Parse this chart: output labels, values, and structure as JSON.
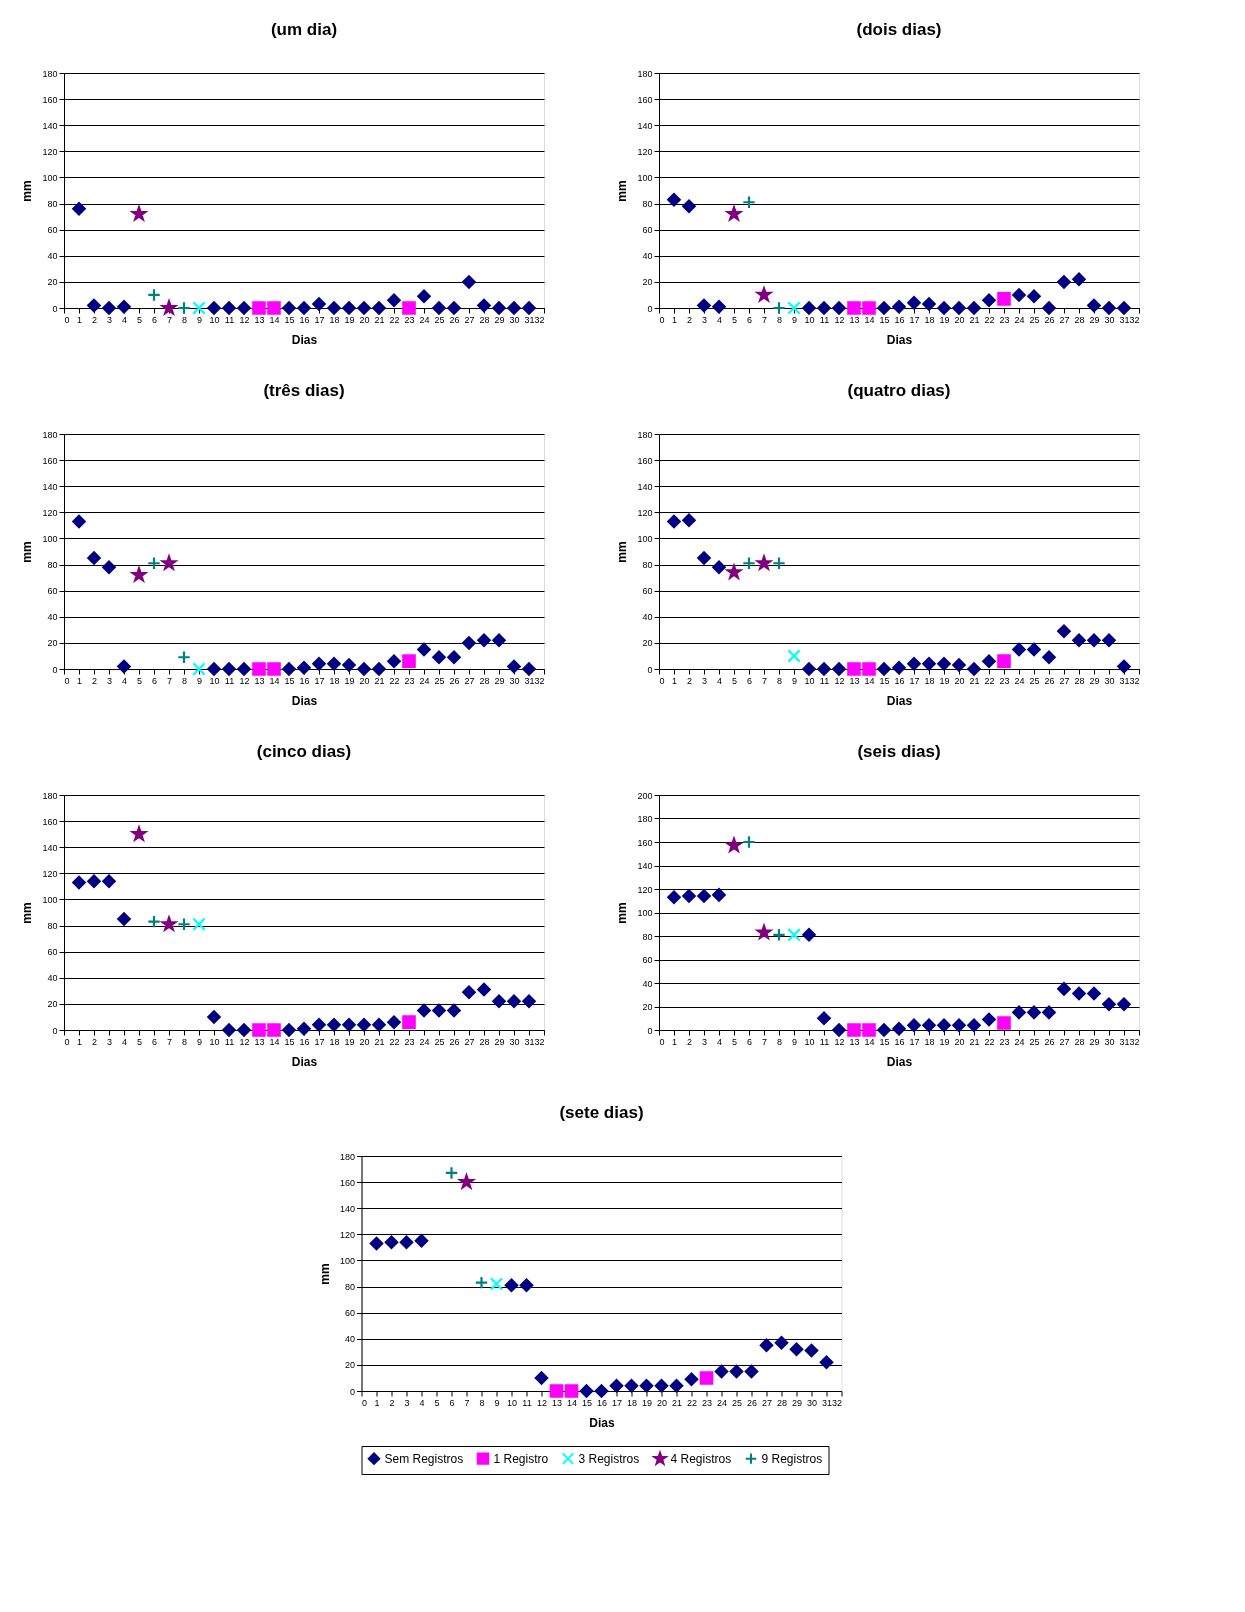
{
  "chart_data": [
    {
      "type": "scatter",
      "title": "(um dia)",
      "xlabel": "Dias",
      "ylabel": "mm",
      "xlim": [
        0,
        32
      ],
      "xticks": [
        0,
        1,
        2,
        3,
        4,
        5,
        6,
        7,
        8,
        9,
        10,
        11,
        12,
        13,
        14,
        15,
        16,
        17,
        18,
        19,
        20,
        21,
        22,
        23,
        24,
        25,
        26,
        27,
        28,
        29,
        30,
        31,
        32
      ],
      "ylim": [
        0,
        180
      ],
      "yticks": [
        0,
        20,
        40,
        60,
        80,
        100,
        120,
        140,
        160,
        180
      ],
      "grid": "y",
      "legend": false,
      "series": [
        {
          "color": "#000080",
          "marker": "diamond",
          "x": [
            1,
            2,
            3,
            4,
            10,
            11,
            12,
            15,
            16,
            17,
            18,
            19,
            20,
            21,
            22,
            24,
            25,
            26,
            27,
            28,
            29,
            30,
            31
          ],
          "values": [
            76,
            2,
            0,
            1,
            0,
            0,
            0,
            0,
            0,
            3,
            0,
            0,
            0,
            0,
            6,
            9,
            0,
            0,
            20,
            2,
            0,
            0,
            0
          ]
        },
        {
          "color": "#ff00ff",
          "marker": "square",
          "x": [
            13,
            14,
            23
          ],
          "values": [
            0,
            0,
            0
          ]
        },
        {
          "color": "#00ffff",
          "marker": "x",
          "x": [
            9
          ],
          "values": [
            0
          ]
        },
        {
          "color": "#800080",
          "marker": "star",
          "x": [
            5,
            7
          ],
          "values": [
            72,
            0
          ]
        },
        {
          "color": "#008080",
          "marker": "cross",
          "x": [
            6,
            8
          ],
          "values": [
            10,
            0
          ]
        }
      ]
    },
    {
      "type": "scatter",
      "title": "(dois dias)",
      "xlabel": "Dias",
      "ylabel": "mm",
      "xlim": [
        0,
        32
      ],
      "xticks": [
        0,
        1,
        2,
        3,
        4,
        5,
        6,
        7,
        8,
        9,
        10,
        11,
        12,
        13,
        14,
        15,
        16,
        17,
        18,
        19,
        20,
        21,
        22,
        23,
        24,
        25,
        26,
        27,
        28,
        29,
        30,
        31,
        32
      ],
      "ylim": [
        0,
        180
      ],
      "yticks": [
        0,
        20,
        40,
        60,
        80,
        100,
        120,
        140,
        160,
        180
      ],
      "grid": "y",
      "legend": false,
      "series": [
        {
          "color": "#000080",
          "marker": "diamond",
          "x": [
            1,
            2,
            3,
            4,
            10,
            11,
            12,
            15,
            16,
            17,
            18,
            19,
            20,
            21,
            22,
            24,
            25,
            26,
            27,
            28,
            29,
            30,
            31
          ],
          "values": [
            83,
            78,
            2,
            1,
            0,
            0,
            0,
            0,
            1,
            4,
            3,
            0,
            0,
            0,
            6,
            10,
            9,
            0,
            20,
            22,
            2,
            0,
            0
          ]
        },
        {
          "color": "#ff00ff",
          "marker": "square",
          "x": [
            13,
            14,
            23
          ],
          "values": [
            0,
            0,
            7
          ]
        },
        {
          "color": "#00ffff",
          "marker": "x",
          "x": [
            9
          ],
          "values": [
            0
          ]
        },
        {
          "color": "#800080",
          "marker": "star",
          "x": [
            5,
            7
          ],
          "values": [
            72,
            10
          ]
        },
        {
          "color": "#008080",
          "marker": "cross",
          "x": [
            6,
            8
          ],
          "values": [
            81,
            0
          ]
        }
      ]
    },
    {
      "type": "scatter",
      "title": "(três dias)",
      "xlabel": "Dias",
      "ylabel": "mm",
      "xlim": [
        0,
        32
      ],
      "xticks": [
        0,
        1,
        2,
        3,
        4,
        5,
        6,
        7,
        8,
        9,
        10,
        11,
        12,
        13,
        14,
        15,
        16,
        17,
        18,
        19,
        20,
        21,
        22,
        23,
        24,
        25,
        26,
        27,
        28,
        29,
        30,
        31,
        32
      ],
      "ylim": [
        0,
        180
      ],
      "yticks": [
        0,
        20,
        40,
        60,
        80,
        100,
        120,
        140,
        160,
        180
      ],
      "grid": "y",
      "legend": false,
      "series": [
        {
          "color": "#000080",
          "marker": "diamond",
          "x": [
            1,
            2,
            3,
            4,
            10,
            11,
            12,
            15,
            16,
            17,
            18,
            19,
            20,
            21,
            22,
            24,
            25,
            26,
            27,
            28,
            29,
            30,
            31
          ],
          "values": [
            113,
            85,
            78,
            2,
            0,
            0,
            0,
            0,
            1,
            4,
            4,
            3,
            0,
            0,
            6,
            15,
            9,
            9,
            20,
            22,
            22,
            2,
            0
          ]
        },
        {
          "color": "#ff00ff",
          "marker": "square",
          "x": [
            13,
            14,
            23
          ],
          "values": [
            0,
            0,
            6
          ]
        },
        {
          "color": "#00ffff",
          "marker": "x",
          "x": [
            9
          ],
          "values": [
            0
          ]
        },
        {
          "color": "#800080",
          "marker": "star",
          "x": [
            5,
            7
          ],
          "values": [
            72,
            81
          ]
        },
        {
          "color": "#008080",
          "marker": "cross",
          "x": [
            6,
            8
          ],
          "values": [
            81,
            9
          ]
        }
      ]
    },
    {
      "type": "scatter",
      "title": "(quatro dias)",
      "xlabel": "Dias",
      "ylabel": "mm",
      "xlim": [
        0,
        32
      ],
      "xticks": [
        0,
        1,
        2,
        3,
        4,
        5,
        6,
        7,
        8,
        9,
        10,
        11,
        12,
        13,
        14,
        15,
        16,
        17,
        18,
        19,
        20,
        21,
        22,
        23,
        24,
        25,
        26,
        27,
        28,
        29,
        30,
        31,
        32
      ],
      "ylim": [
        0,
        180
      ],
      "yticks": [
        0,
        20,
        40,
        60,
        80,
        100,
        120,
        140,
        160,
        180
      ],
      "grid": "y",
      "legend": false,
      "series": [
        {
          "color": "#000080",
          "marker": "diamond",
          "x": [
            1,
            2,
            3,
            4,
            10,
            11,
            12,
            15,
            16,
            17,
            18,
            19,
            20,
            21,
            22,
            24,
            25,
            26,
            27,
            28,
            29,
            30,
            31
          ],
          "values": [
            113,
            114,
            85,
            78,
            0,
            0,
            0,
            0,
            1,
            4,
            4,
            4,
            3,
            0,
            6,
            15,
            15,
            9,
            29,
            22,
            22,
            22,
            2
          ]
        },
        {
          "color": "#ff00ff",
          "marker": "square",
          "x": [
            13,
            14,
            23
          ],
          "values": [
            0,
            0,
            6
          ]
        },
        {
          "color": "#00ffff",
          "marker": "x",
          "x": [
            9
          ],
          "values": [
            10
          ]
        },
        {
          "color": "#800080",
          "marker": "star",
          "x": [
            5,
            7
          ],
          "values": [
            74,
            81
          ]
        },
        {
          "color": "#008080",
          "marker": "cross",
          "x": [
            6,
            8
          ],
          "values": [
            81,
            81
          ]
        }
      ]
    },
    {
      "type": "scatter",
      "title": "(cinco dias)",
      "xlabel": "Dias",
      "ylabel": "mm",
      "xlim": [
        0,
        32
      ],
      "xticks": [
        0,
        1,
        2,
        3,
        4,
        5,
        6,
        7,
        8,
        9,
        10,
        11,
        12,
        13,
        14,
        15,
        16,
        17,
        18,
        19,
        20,
        21,
        22,
        23,
        24,
        25,
        26,
        27,
        28,
        29,
        30,
        31,
        32
      ],
      "ylim": [
        0,
        180
      ],
      "yticks": [
        0,
        20,
        40,
        60,
        80,
        100,
        120,
        140,
        160,
        180
      ],
      "grid": "y",
      "legend": false,
      "series": [
        {
          "color": "#000080",
          "marker": "diamond",
          "x": [
            1,
            2,
            3,
            4,
            10,
            11,
            12,
            15,
            16,
            17,
            18,
            19,
            20,
            21,
            22,
            24,
            25,
            26,
            27,
            28,
            29,
            30,
            31
          ],
          "values": [
            113,
            114,
            114,
            85,
            10,
            0,
            0,
            0,
            1,
            4,
            4,
            4,
            4,
            4,
            6,
            15,
            15,
            15,
            29,
            31,
            22,
            22,
            22
          ]
        },
        {
          "color": "#ff00ff",
          "marker": "square",
          "x": [
            13,
            14,
            23
          ],
          "values": [
            0,
            0,
            6
          ]
        },
        {
          "color": "#00ffff",
          "marker": "x",
          "x": [
            9
          ],
          "values": [
            81
          ]
        },
        {
          "color": "#800080",
          "marker": "star",
          "x": [
            5,
            7
          ],
          "values": [
            150,
            81
          ]
        },
        {
          "color": "#008080",
          "marker": "cross",
          "x": [
            6,
            8
          ],
          "values": [
            83,
            81
          ]
        }
      ]
    },
    {
      "type": "scatter",
      "title": "(seis dias)",
      "xlabel": "Dias",
      "ylabel": "mm",
      "xlim": [
        0,
        32
      ],
      "xticks": [
        0,
        1,
        2,
        3,
        4,
        5,
        6,
        7,
        8,
        9,
        10,
        11,
        12,
        13,
        14,
        15,
        16,
        17,
        18,
        19,
        20,
        21,
        22,
        23,
        24,
        25,
        26,
        27,
        28,
        29,
        30,
        31,
        32
      ],
      "ylim": [
        0,
        200
      ],
      "yticks": [
        0,
        20,
        40,
        60,
        80,
        100,
        120,
        140,
        160,
        180,
        200
      ],
      "grid": "y",
      "legend": false,
      "series": [
        {
          "color": "#000080",
          "marker": "diamond",
          "x": [
            1,
            2,
            3,
            4,
            10,
            11,
            12,
            15,
            16,
            17,
            18,
            19,
            20,
            21,
            22,
            24,
            25,
            26,
            27,
            28,
            29,
            30,
            31
          ],
          "values": [
            113,
            114,
            114,
            115,
            81,
            10,
            0,
            0,
            1,
            4,
            4,
            4,
            4,
            4,
            9,
            15,
            15,
            15,
            35,
            31,
            31,
            22,
            22
          ]
        },
        {
          "color": "#ff00ff",
          "marker": "square",
          "x": [
            13,
            14,
            23
          ],
          "values": [
            0,
            0,
            6
          ]
        },
        {
          "color": "#00ffff",
          "marker": "x",
          "x": [
            9
          ],
          "values": [
            81
          ]
        },
        {
          "color": "#800080",
          "marker": "star",
          "x": [
            5,
            7
          ],
          "values": [
            157,
            83
          ]
        },
        {
          "color": "#008080",
          "marker": "cross",
          "x": [
            6,
            8
          ],
          "values": [
            160,
            81
          ]
        }
      ]
    },
    {
      "type": "scatter",
      "title": "(sete dias)",
      "xlabel": "Dias",
      "ylabel": "mm",
      "xlim": [
        0,
        32
      ],
      "xticks": [
        0,
        1,
        2,
        3,
        4,
        5,
        6,
        7,
        8,
        9,
        10,
        11,
        12,
        13,
        14,
        15,
        16,
        17,
        18,
        19,
        20,
        21,
        22,
        23,
        24,
        25,
        26,
        27,
        28,
        29,
        30,
        31,
        32
      ],
      "ylim": [
        0,
        180
      ],
      "yticks": [
        0,
        20,
        40,
        60,
        80,
        100,
        120,
        140,
        160,
        180
      ],
      "grid": "y",
      "legend": "bottom",
      "series": [
        {
          "name": "Sem Registros",
          "color": "#000080",
          "marker": "diamond",
          "x": [
            1,
            2,
            3,
            4,
            10,
            11,
            12,
            15,
            16,
            17,
            18,
            19,
            20,
            21,
            22,
            24,
            25,
            26,
            27,
            28,
            29,
            30,
            31
          ],
          "values": [
            113,
            114,
            114,
            115,
            81,
            81,
            10,
            0,
            0,
            4,
            4,
            4,
            4,
            4,
            9,
            15,
            15,
            15,
            35,
            37,
            32,
            31,
            22
          ]
        },
        {
          "name": "1 Registro",
          "color": "#ff00ff",
          "marker": "square",
          "x": [
            13,
            14,
            23
          ],
          "values": [
            0,
            0,
            10
          ]
        },
        {
          "name": "3 Registros",
          "color": "#00ffff",
          "marker": "x",
          "x": [
            9
          ],
          "values": [
            82
          ]
        },
        {
          "name": "4 Registros",
          "color": "#800080",
          "marker": "star",
          "x": [
            7
          ],
          "values": [
            160
          ]
        },
        {
          "name": "9 Registros",
          "color": "#008080",
          "marker": "cross",
          "x": [
            6,
            8
          ],
          "values": [
            167,
            83
          ]
        }
      ]
    }
  ]
}
